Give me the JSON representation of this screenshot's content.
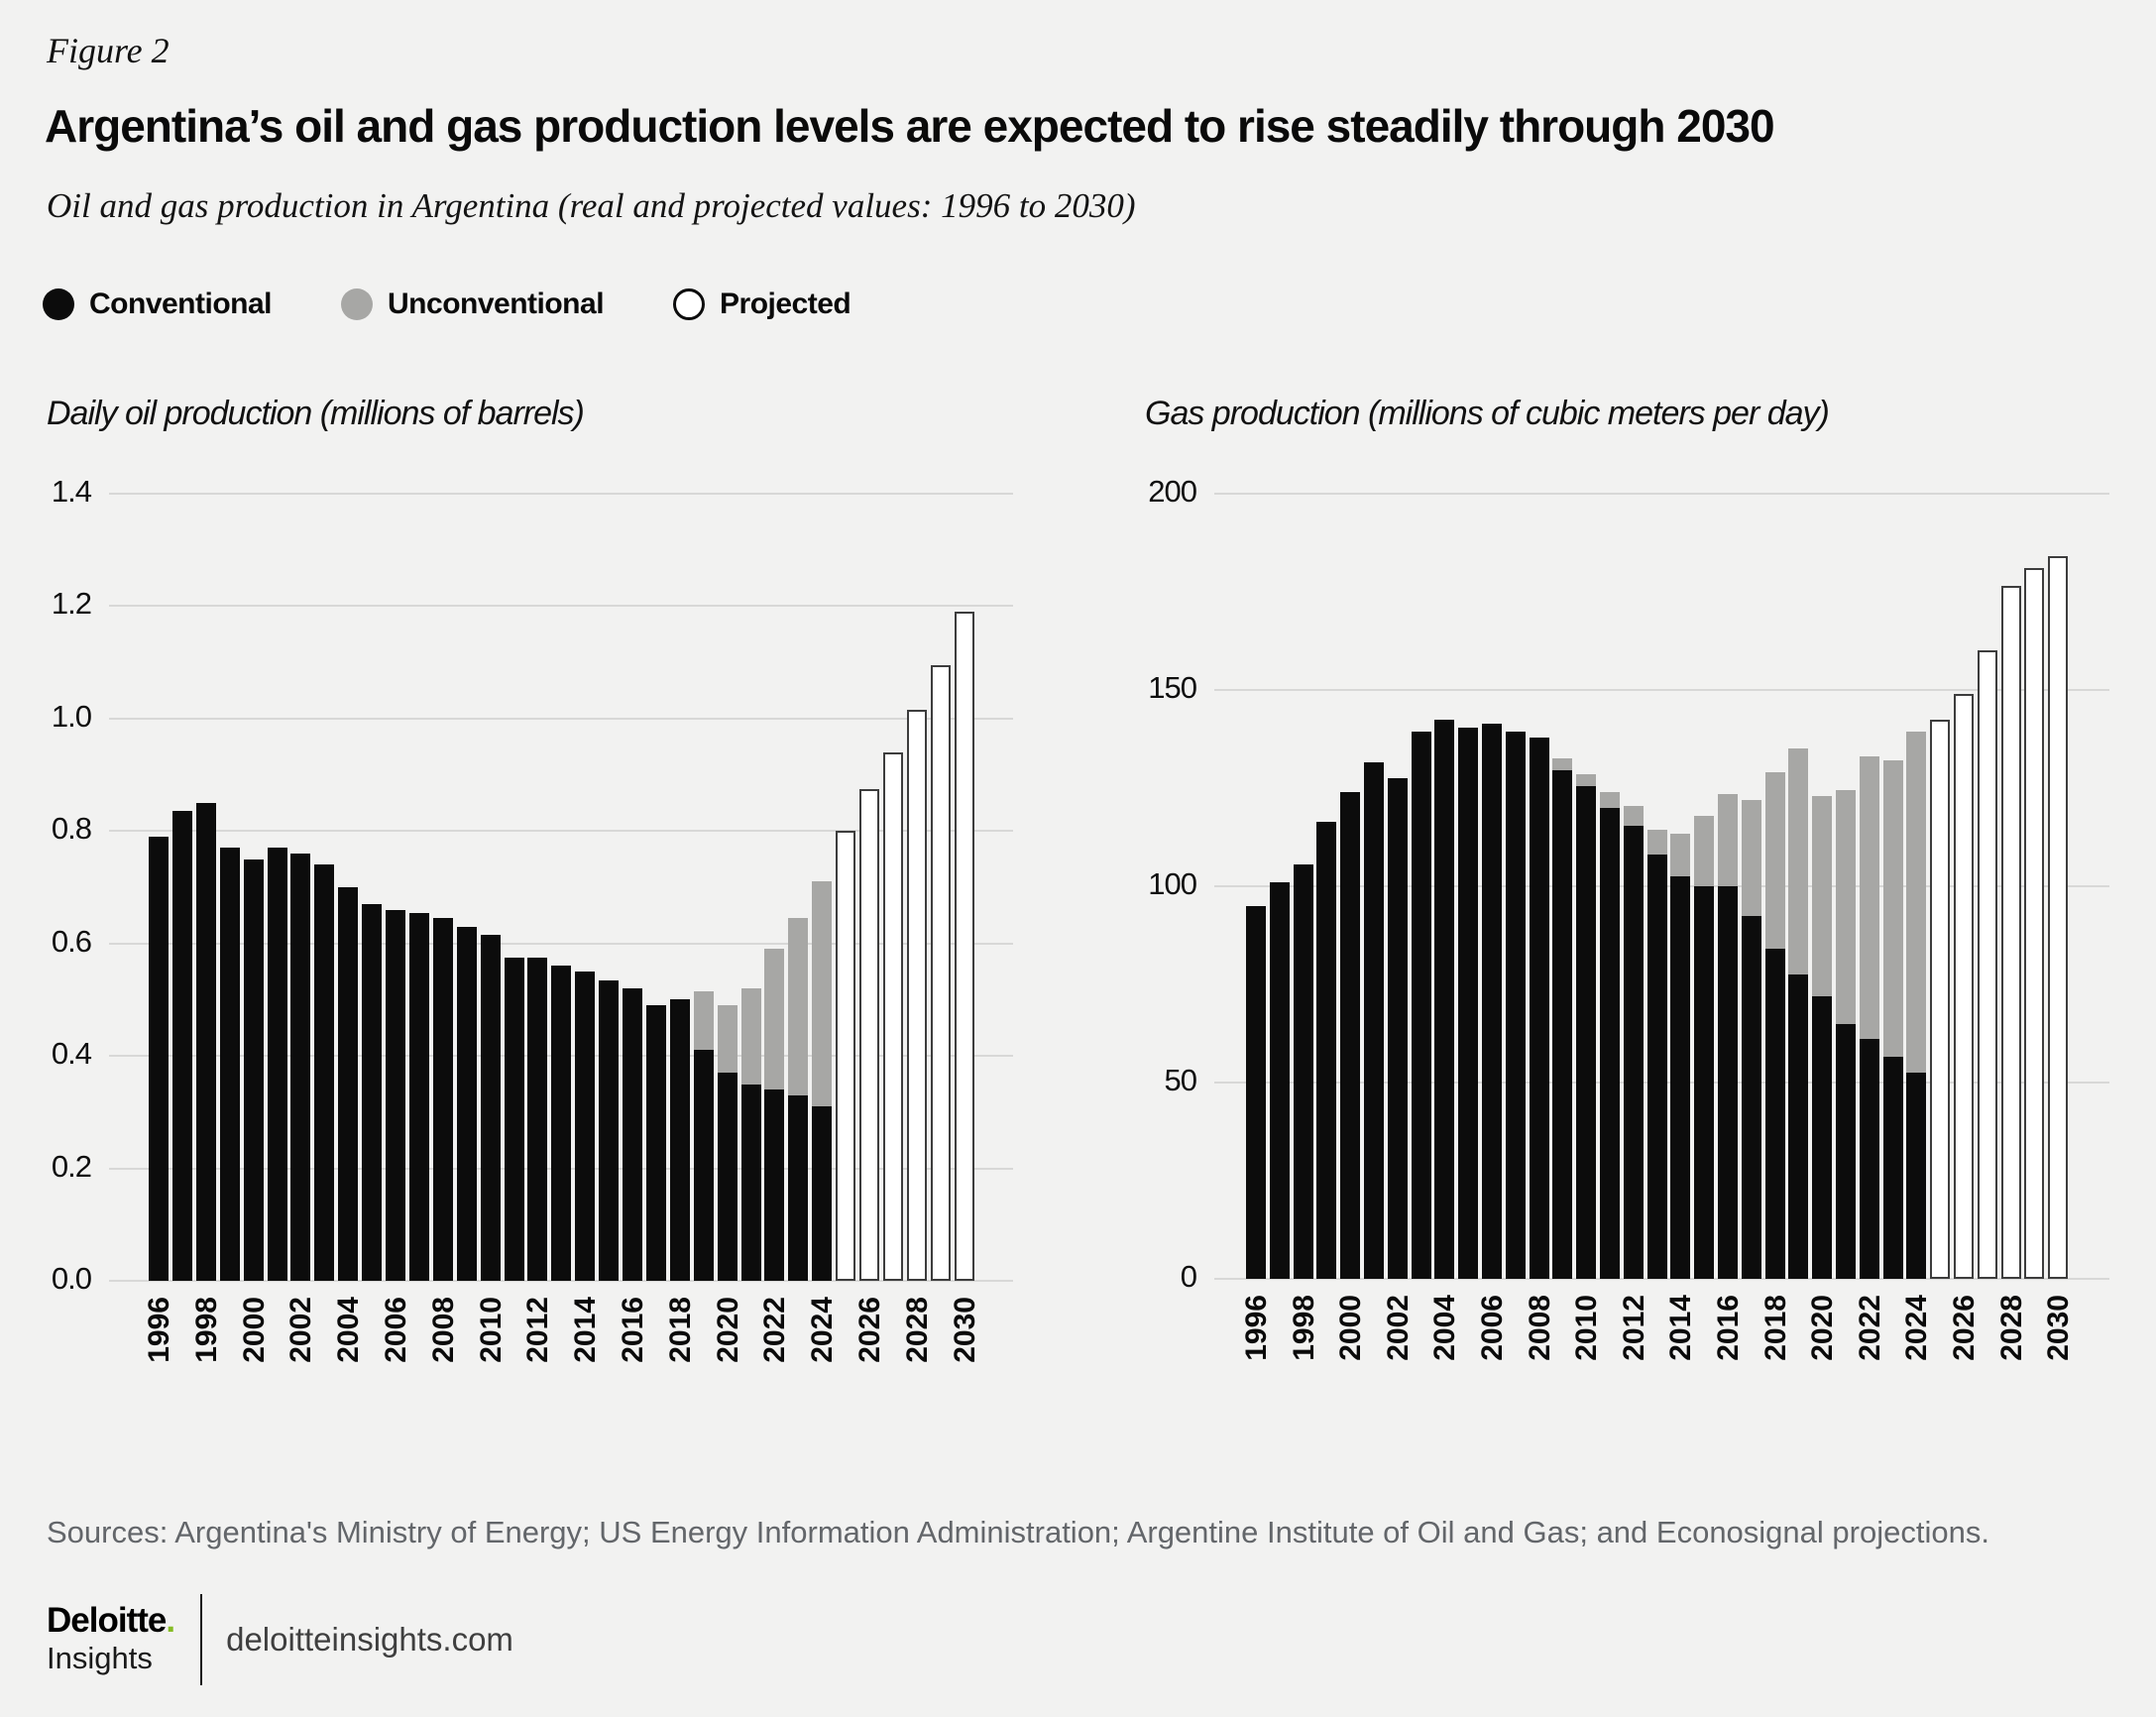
{
  "figure_label": "Figure 2",
  "title": "Argentina’s oil and gas production levels are expected to rise steadily through 2030",
  "subtitle": "Oil and gas production in Argentina (real and projected values: 1996 to 2030)",
  "legend": [
    {
      "label": "Conventional",
      "swatch": "black"
    },
    {
      "label": "Unconventional",
      "swatch": "gray"
    },
    {
      "label": "Projected",
      "swatch": "white"
    }
  ],
  "colors": {
    "background": "#f2f2f1",
    "conventional": "#0c0c0c",
    "unconventional": "#a7a7a5",
    "projected_fill": "#ffffff",
    "projected_border": "#3d3d3d",
    "gridline": "#d8d8d7",
    "source_text": "#63666a",
    "deloitte_green": "#86bc25"
  },
  "chart_data": [
    {
      "type": "bar",
      "stacked": true,
      "title": "Daily oil production (millions of barrels)",
      "xlabel": "",
      "ylabel": "millions of barrels per day",
      "ylim": [
        0,
        1.4
      ],
      "yticks": [
        "0.0",
        "0.2",
        "0.4",
        "0.6",
        "0.8",
        "1.0",
        "1.2",
        "1.4"
      ],
      "grid": true,
      "legend_position": "top",
      "x": [
        1996,
        1997,
        1998,
        1999,
        2000,
        2001,
        2002,
        2003,
        2004,
        2005,
        2006,
        2007,
        2008,
        2009,
        2010,
        2011,
        2012,
        2013,
        2014,
        2015,
        2016,
        2017,
        2018,
        2019,
        2020,
        2021,
        2022,
        2023,
        2024,
        2025,
        2026,
        2027,
        2028,
        2029,
        2030
      ],
      "x_tick_labels": [
        "1996",
        "1998",
        "2000",
        "2002",
        "2004",
        "2006",
        "2008",
        "2010",
        "2012",
        "2014",
        "2016",
        "2018",
        "2020",
        "2022",
        "2024",
        "2026",
        "2028",
        "2030"
      ],
      "series": [
        {
          "name": "Conventional",
          "values": [
            0.79,
            0.835,
            0.85,
            0.77,
            0.75,
            0.77,
            0.76,
            0.74,
            0.7,
            0.67,
            0.66,
            0.655,
            0.645,
            0.63,
            0.615,
            0.575,
            0.575,
            0.56,
            0.55,
            0.535,
            0.52,
            0.49,
            0.5,
            0.41,
            0.37,
            0.35,
            0.34,
            0.33,
            0.31,
            0,
            0,
            0,
            0,
            0,
            0
          ]
        },
        {
          "name": "Unconventional",
          "values": [
            0,
            0,
            0,
            0,
            0,
            0,
            0,
            0,
            0,
            0,
            0,
            0,
            0,
            0,
            0,
            0,
            0,
            0,
            0,
            0,
            0,
            0,
            0,
            0.105,
            0.12,
            0.17,
            0.25,
            0.315,
            0.4,
            0,
            0,
            0,
            0,
            0,
            0
          ]
        },
        {
          "name": "Projected",
          "values": [
            0,
            0,
            0,
            0,
            0,
            0,
            0,
            0,
            0,
            0,
            0,
            0,
            0,
            0,
            0,
            0,
            0,
            0,
            0,
            0,
            0,
            0,
            0,
            0,
            0,
            0,
            0,
            0,
            0,
            0.8,
            0.875,
            0.94,
            1.015,
            1.095,
            1.19
          ]
        }
      ]
    },
    {
      "type": "bar",
      "stacked": true,
      "title": "Gas production (millions of cubic meters per day)",
      "xlabel": "",
      "ylabel": "millions of cubic meters per day",
      "ylim": [
        0,
        200
      ],
      "yticks": [
        "0",
        "50",
        "100",
        "150",
        "200"
      ],
      "grid": true,
      "legend_position": "top",
      "x": [
        1996,
        1997,
        1998,
        1999,
        2000,
        2001,
        2002,
        2003,
        2004,
        2005,
        2006,
        2007,
        2008,
        2009,
        2010,
        2011,
        2012,
        2013,
        2014,
        2015,
        2016,
        2017,
        2018,
        2019,
        2020,
        2021,
        2022,
        2023,
        2024,
        2025,
        2026,
        2027,
        2028,
        2029,
        2030
      ],
      "x_tick_labels": [
        "1996",
        "1998",
        "2000",
        "2002",
        "2004",
        "2006",
        "2008",
        "2010",
        "2012",
        "2014",
        "2016",
        "2018",
        "2020",
        "2022",
        "2024",
        "2026",
        "2028",
        "2030"
      ],
      "series": [
        {
          "name": "Conventional",
          "values": [
            95,
            101,
            105.5,
            116.5,
            124,
            131.5,
            127.5,
            139.5,
            142.5,
            140.5,
            141.5,
            139.5,
            138,
            129.5,
            125.5,
            120,
            115.5,
            108,
            102.5,
            100,
            100,
            92.5,
            84,
            77.5,
            72,
            65,
            61,
            56.5,
            52.5,
            0,
            0,
            0,
            0,
            0,
            0
          ]
        },
        {
          "name": "Unconventional",
          "values": [
            0,
            0,
            0,
            0,
            0,
            0,
            0,
            0,
            0,
            0,
            0,
            0,
            0,
            3,
            3,
            4,
            5,
            6.5,
            11,
            18,
            23.5,
            29.5,
            45,
            57.5,
            51,
            59.5,
            72,
            75.5,
            87,
            0,
            0,
            0,
            0,
            0,
            0
          ]
        },
        {
          "name": "Projected",
          "values": [
            0,
            0,
            0,
            0,
            0,
            0,
            0,
            0,
            0,
            0,
            0,
            0,
            0,
            0,
            0,
            0,
            0,
            0,
            0,
            0,
            0,
            0,
            0,
            0,
            0,
            0,
            0,
            0,
            0,
            142.5,
            149,
            160,
            176.5,
            181,
            184
          ]
        }
      ]
    }
  ],
  "footer": {
    "sources": "Sources: Argentina's Ministry of Energy; US Energy Information Administration; Argentine Institute of Oil and Gas; and Econosignal projections.",
    "brand": {
      "deloitte": "Deloitte",
      "dot": ".",
      "insights": "Insights",
      "site": "deloitteinsights.com"
    }
  }
}
